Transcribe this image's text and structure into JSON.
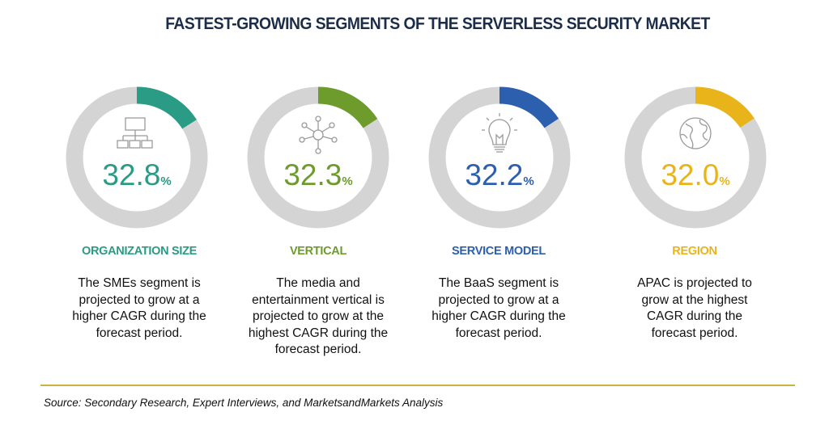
{
  "title": "FASTEST-GROWING SEGMENTS OF THE SERVERLESS SECURITY MARKET",
  "source": "Source: Secondary Research, Expert Interviews, and MarketsandMarkets Analysis",
  "segments": [
    {
      "label": "ORGANIZATION SIZE",
      "value_text": "32.8",
      "unit": "%",
      "color": "#2a9b84",
      "icon": "org-chart-icon",
      "text": [
        "The SMEs segment is",
        "projected to grow at a",
        "higher CAGR during the",
        "forecast period."
      ]
    },
    {
      "label": "VERTICAL",
      "value_text": "32.3",
      "unit": "%",
      "color": "#6d9c2d",
      "icon": "network-hub-icon",
      "text": [
        "The media and",
        "entertainment vertical is",
        "projected to grow at the",
        "highest CAGR during the",
        "forecast period."
      ]
    },
    {
      "label": "SERVICE MODEL",
      "value_text": "32.2",
      "unit": "%",
      "color": "#2c5fae",
      "icon": "lightbulb-icon",
      "text": [
        "The BaaS segment is",
        "projected to grow at a",
        "higher CAGR during the",
        "forecast period."
      ]
    },
    {
      "label": "REGION",
      "value_text": "32.0",
      "unit": "%",
      "color": "#e9b41a",
      "icon": "globe-icon",
      "text": [
        "APAC is projected to",
        "grow at the highest",
        "CAGR during the",
        "forecast period."
      ]
    }
  ],
  "chart_data": {
    "type": "pie",
    "title": "FASTEST-GROWING SEGMENTS OF THE SERVERLESS SECURITY MARKET",
    "categories": [
      "ORGANIZATION SIZE",
      "VERTICAL",
      "SERVICE MODEL",
      "REGION"
    ],
    "values": [
      32.8,
      32.3,
      32.2,
      32.0
    ],
    "track_color": "#d4d4d4"
  }
}
